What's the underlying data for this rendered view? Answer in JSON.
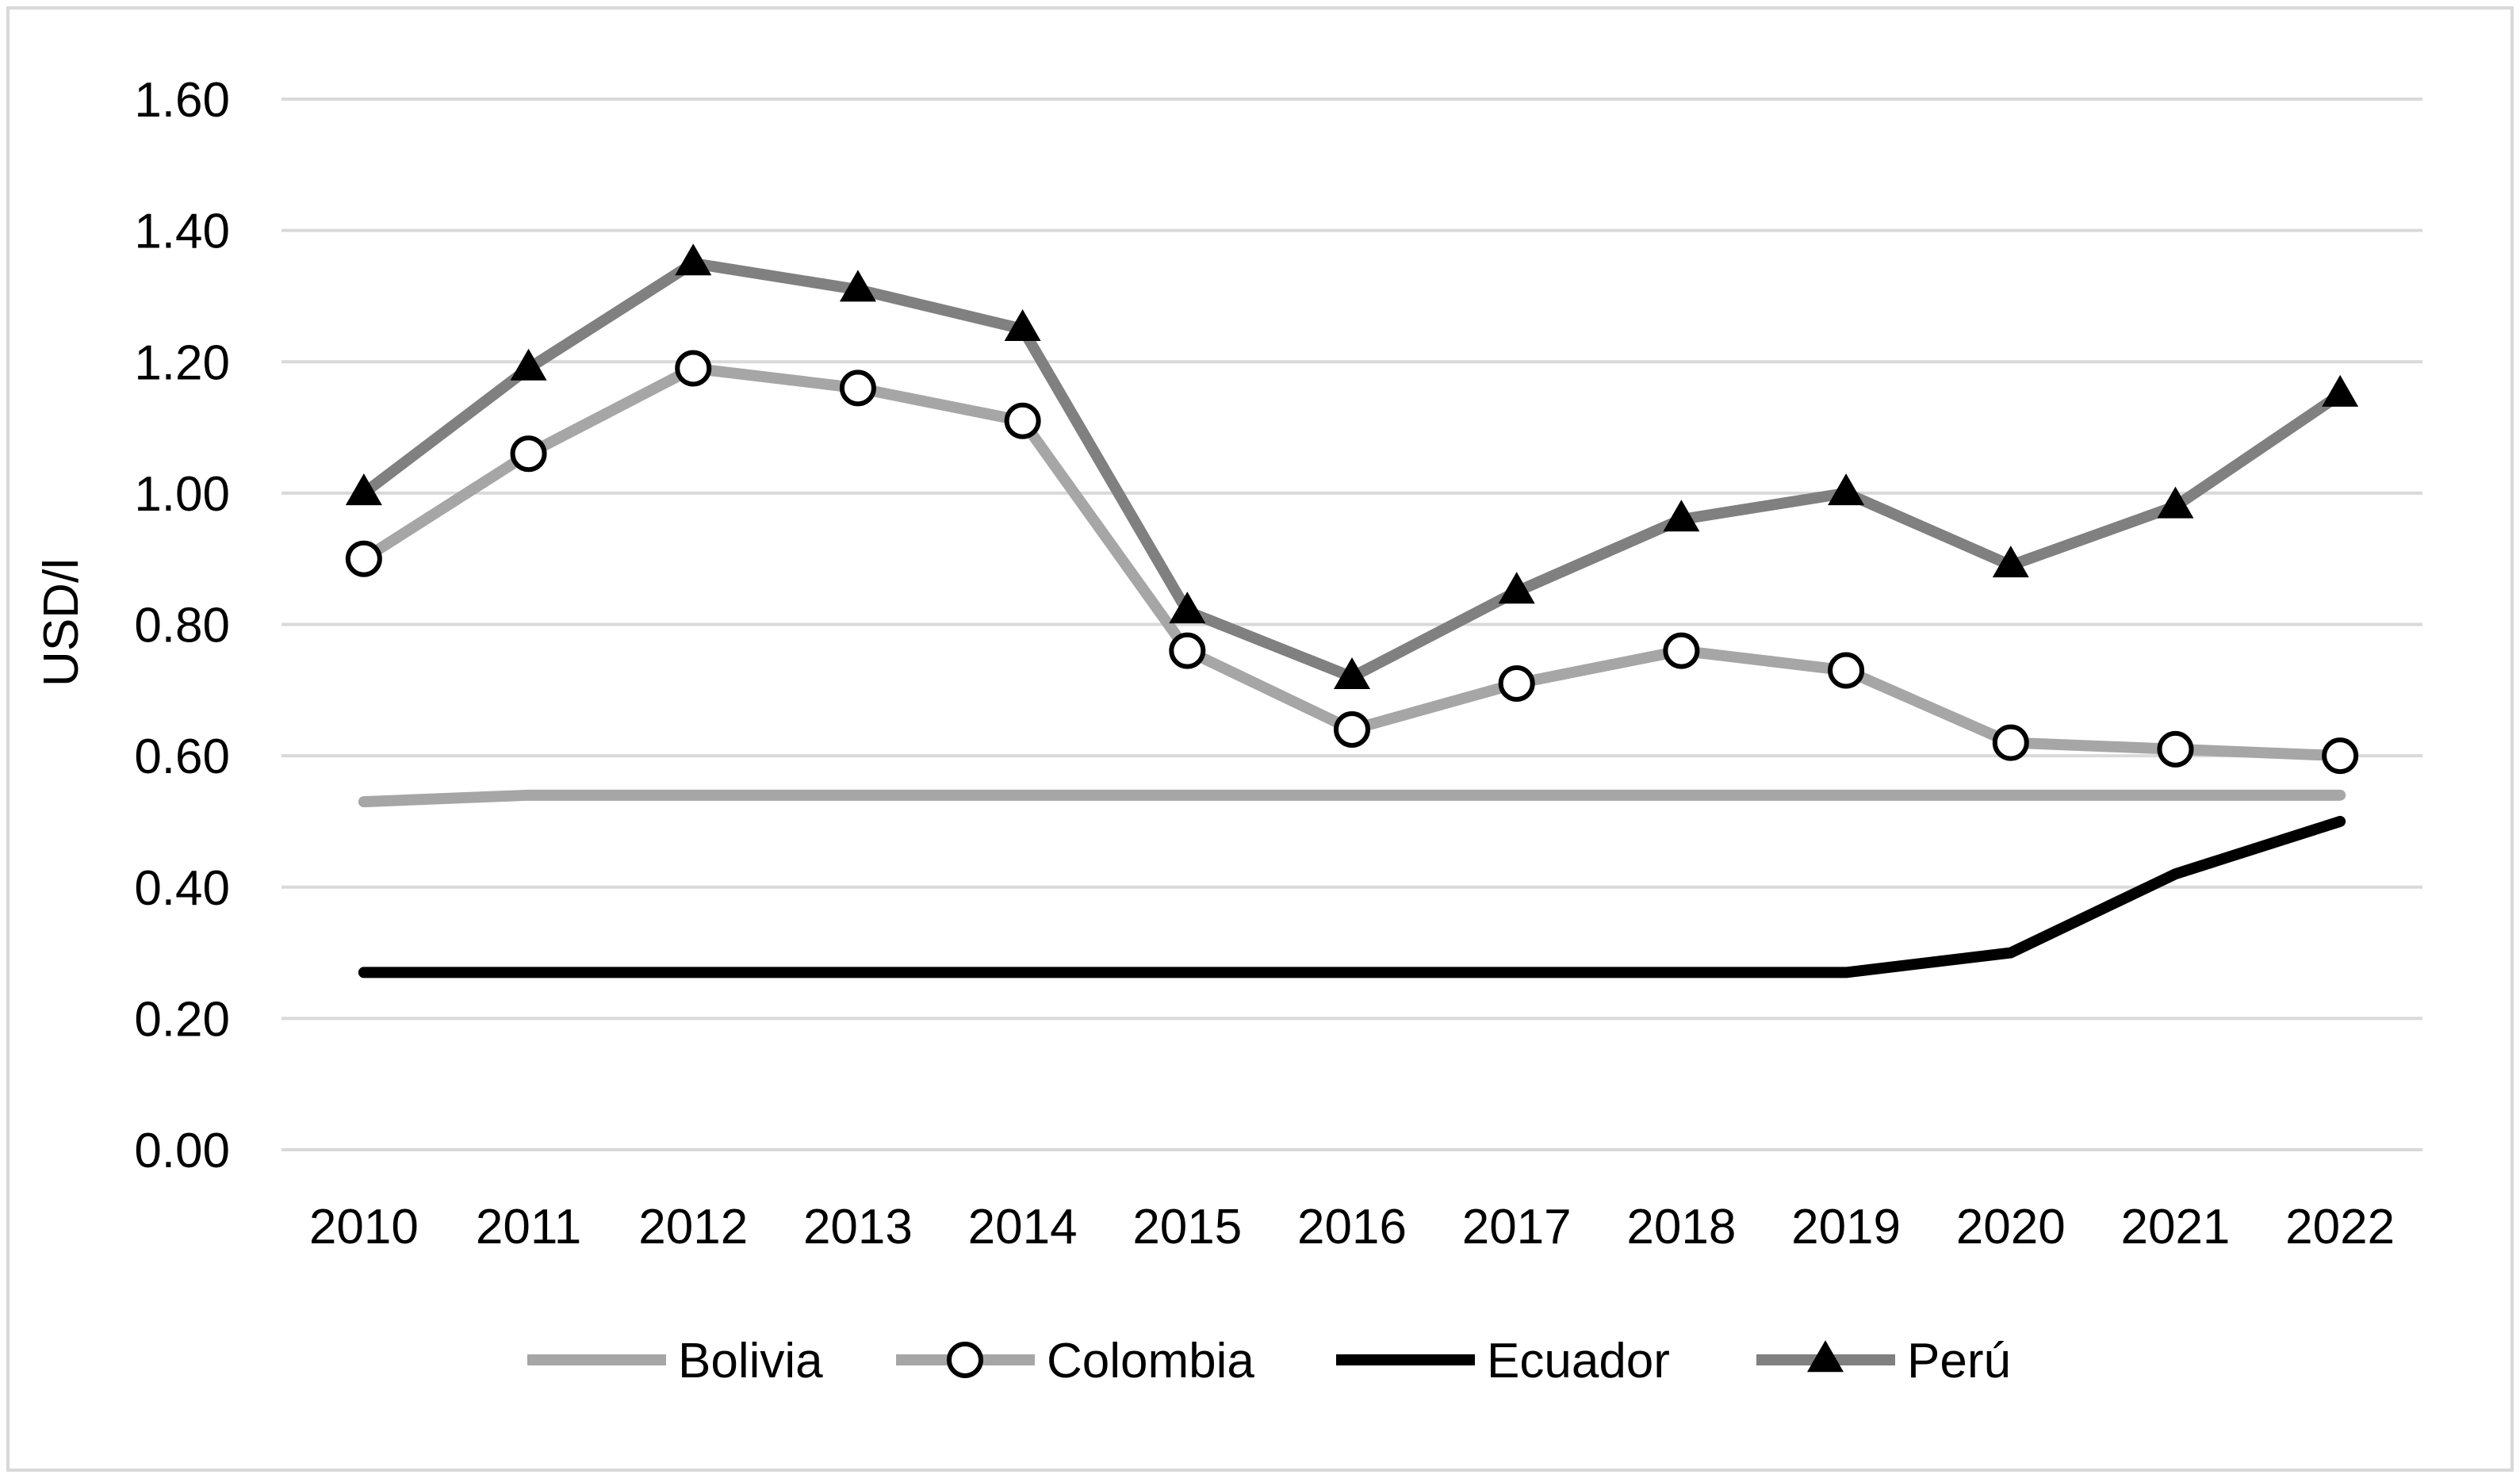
{
  "chart_data": {
    "type": "line",
    "title": "",
    "xlabel": "",
    "ylabel": "USD/l",
    "ylim": [
      0,
      1.6
    ],
    "yticks": [
      0,
      0.2,
      0.4,
      0.6,
      0.8,
      1.0,
      1.2,
      1.4,
      1.6
    ],
    "ytick_labels": [
      "0.00",
      "0.20",
      "0.40",
      "0.60",
      "0.80",
      "1.00",
      "1.20",
      "1.40",
      "1.60"
    ],
    "grid": true,
    "legend_position": "bottom",
    "categories": [
      "2010",
      "2011",
      "2012",
      "2013",
      "2014",
      "2015",
      "2016",
      "2017",
      "2018",
      "2019",
      "2020",
      "2021",
      "2022"
    ],
    "series": [
      {
        "name": "Bolivia",
        "color": "#a6a6a6",
        "marker": "none",
        "values": [
          0.53,
          0.54,
          0.54,
          0.54,
          0.54,
          0.54,
          0.54,
          0.54,
          0.54,
          0.54,
          0.54,
          0.54,
          0.54
        ]
      },
      {
        "name": "Colombia",
        "color": "#a6a6a6",
        "marker": "circle",
        "values": [
          0.9,
          1.06,
          1.19,
          1.16,
          1.11,
          0.76,
          0.64,
          0.71,
          0.76,
          0.73,
          0.62,
          0.61,
          0.6
        ]
      },
      {
        "name": "Ecuador",
        "color": "#000000",
        "marker": "none",
        "values": [
          0.27,
          0.27,
          0.27,
          0.27,
          0.27,
          0.27,
          0.27,
          0.27,
          0.27,
          0.27,
          0.3,
          0.42,
          0.5
        ]
      },
      {
        "name": "Perú",
        "color": "#808080",
        "marker": "triangle",
        "values": [
          1.0,
          1.19,
          1.35,
          1.31,
          1.25,
          0.82,
          0.72,
          0.85,
          0.96,
          1.0,
          0.89,
          0.98,
          1.15
        ]
      }
    ]
  }
}
